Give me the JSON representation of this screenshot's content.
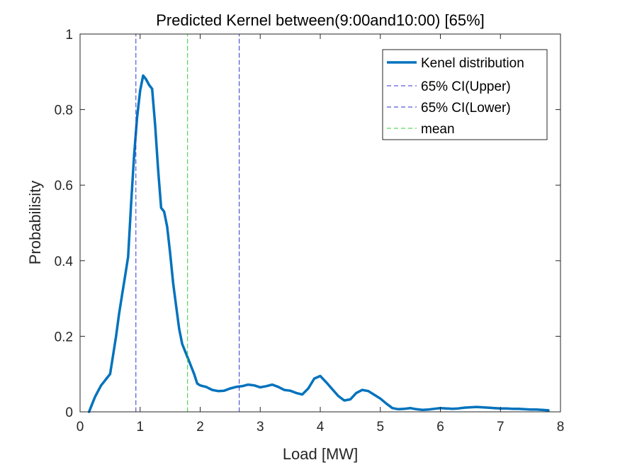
{
  "chart_data": {
    "type": "line",
    "title": "Predicted Kernel between(9:00and10:00) [65%]",
    "xlabel": "Load [MW]",
    "ylabel": "Probabilisity",
    "xlim": [
      0,
      8
    ],
    "ylim": [
      0,
      1
    ],
    "xticks": [
      0,
      1,
      2,
      3,
      4,
      5,
      6,
      7,
      8
    ],
    "yticks": [
      0,
      0.2,
      0.4,
      0.6,
      0.8,
      1
    ],
    "ytick_labels": [
      "0",
      "0.2",
      "0.4",
      "0.6",
      "0.8",
      "1"
    ],
    "grid": false,
    "legend_position": "top-right",
    "series": [
      {
        "name": "Kenel distribution",
        "color": "#0072bd",
        "style": "solid",
        "x": [
          0.15,
          0.2,
          0.25,
          0.3,
          0.35,
          0.4,
          0.45,
          0.5,
          0.55,
          0.6,
          0.65,
          0.7,
          0.75,
          0.8,
          0.85,
          0.9,
          0.95,
          1.0,
          1.05,
          1.1,
          1.15,
          1.2,
          1.25,
          1.3,
          1.35,
          1.4,
          1.45,
          1.5,
          1.55,
          1.6,
          1.65,
          1.7,
          1.75,
          1.8,
          1.85,
          1.9,
          1.95,
          2.0,
          2.05,
          2.1,
          2.15,
          2.2,
          2.3,
          2.4,
          2.5,
          2.6,
          2.7,
          2.8,
          2.9,
          3.0,
          3.1,
          3.2,
          3.3,
          3.4,
          3.5,
          3.6,
          3.7,
          3.8,
          3.9,
          4.0,
          4.1,
          4.2,
          4.3,
          4.4,
          4.5,
          4.6,
          4.7,
          4.8,
          4.9,
          5.0,
          5.1,
          5.2,
          5.3,
          5.4,
          5.5,
          5.6,
          5.7,
          5.8,
          5.9,
          6.0,
          6.1,
          6.2,
          6.3,
          6.4,
          6.5,
          6.6,
          6.7,
          6.8,
          6.9,
          7.0,
          7.1,
          7.2,
          7.3,
          7.4,
          7.5,
          7.6,
          7.7,
          7.8
        ],
        "values": [
          0.0,
          0.02,
          0.04,
          0.055,
          0.07,
          0.08,
          0.09,
          0.1,
          0.15,
          0.2,
          0.26,
          0.31,
          0.36,
          0.41,
          0.55,
          0.68,
          0.78,
          0.85,
          0.89,
          0.88,
          0.865,
          0.855,
          0.76,
          0.64,
          0.54,
          0.53,
          0.49,
          0.42,
          0.34,
          0.28,
          0.22,
          0.18,
          0.16,
          0.14,
          0.12,
          0.1,
          0.075,
          0.07,
          0.068,
          0.066,
          0.062,
          0.058,
          0.055,
          0.056,
          0.062,
          0.066,
          0.068,
          0.072,
          0.07,
          0.065,
          0.068,
          0.072,
          0.066,
          0.058,
          0.056,
          0.05,
          0.046,
          0.062,
          0.088,
          0.095,
          0.078,
          0.06,
          0.042,
          0.03,
          0.033,
          0.05,
          0.058,
          0.055,
          0.045,
          0.035,
          0.022,
          0.01,
          0.007,
          0.008,
          0.01,
          0.007,
          0.005,
          0.006,
          0.008,
          0.01,
          0.009,
          0.008,
          0.009,
          0.011,
          0.012,
          0.013,
          0.012,
          0.011,
          0.01,
          0.009,
          0.009,
          0.008,
          0.008,
          0.007,
          0.006,
          0.006,
          0.005,
          0.004
        ]
      },
      {
        "name": "65% CI(Upper)",
        "color": "#3333cc",
        "style": "dashed",
        "x": [
          0.93,
          0.93
        ],
        "values": [
          0,
          1
        ]
      },
      {
        "name": "65% CI(Lower)",
        "color": "#3333cc",
        "style": "dashed",
        "x": [
          2.65,
          2.65
        ],
        "values": [
          0,
          1
        ]
      },
      {
        "name": "mean",
        "color": "#33cc33",
        "style": "dashed",
        "x": [
          1.79,
          1.79
        ],
        "values": [
          0,
          1
        ]
      }
    ]
  }
}
